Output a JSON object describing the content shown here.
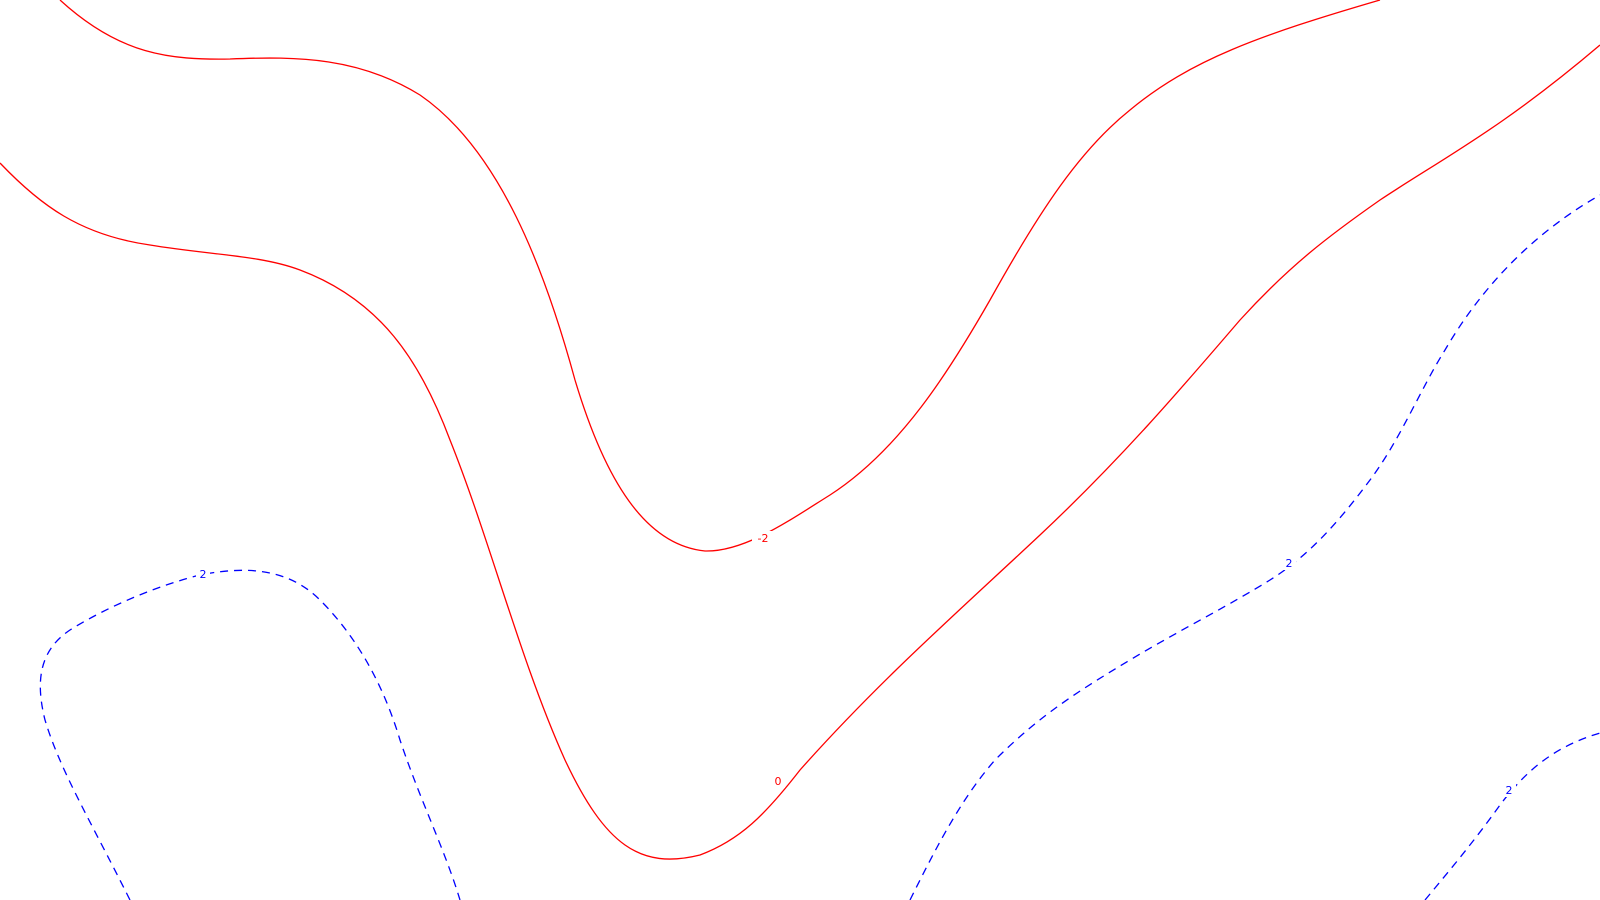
{
  "colors": {
    "background": "#ffffff",
    "negative_contour": "#ff0000",
    "positive_contour": "#0000ff"
  },
  "contours": [
    {
      "level": -2,
      "label": "-2",
      "style": "solid",
      "color": "#ff0000"
    },
    {
      "level": 0,
      "label": "0",
      "style": "solid",
      "color": "#ff0000"
    },
    {
      "level": 2,
      "label": "2",
      "style": "dashed",
      "color": "#0000ff"
    }
  ]
}
